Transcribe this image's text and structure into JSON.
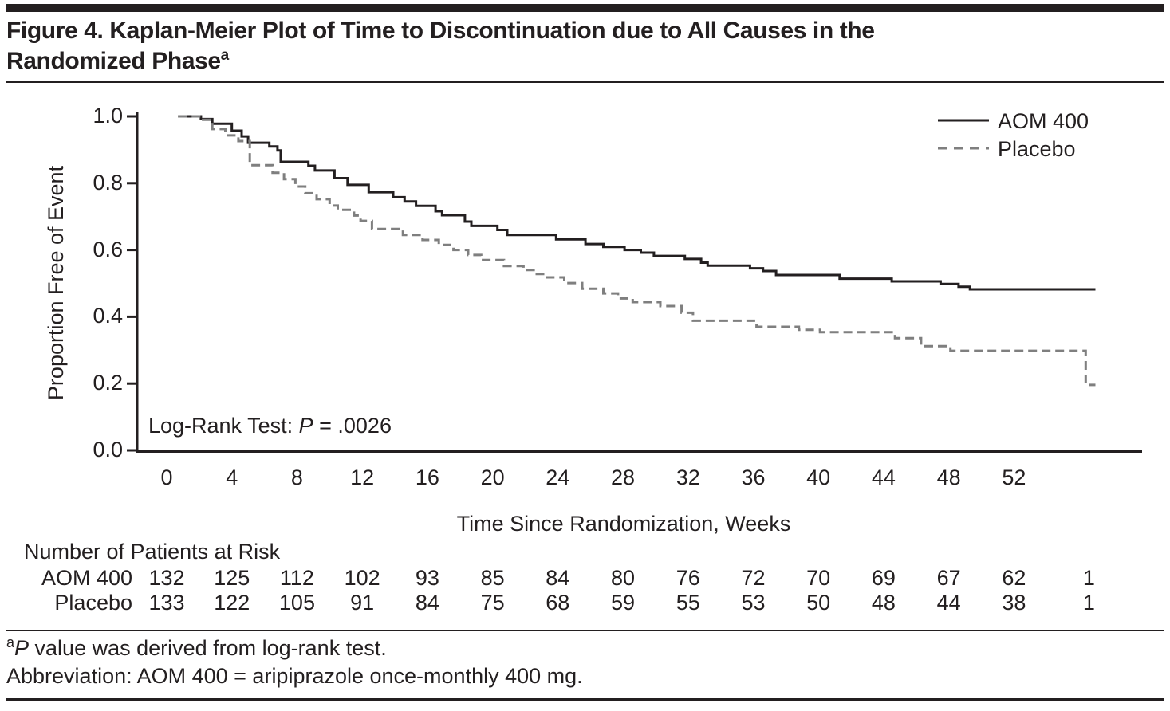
{
  "figure": {
    "title_line1": "Figure 4. Kaplan-Meier Plot of Time to Discontinuation due to All Causes in the",
    "title_line2": "Randomized Phase",
    "title_superscript": "a",
    "footnote1_sup": "a",
    "footnote1_italic": "P",
    "footnote1_rest": " value was derived from log-rank test.",
    "footnote2": "Abbreviation: AOM 400 = aripiprazole once-monthly 400 mg."
  },
  "colors": {
    "ink": "#231f20",
    "aom400_line": "#231f20",
    "placebo_line": "#7f7f7f"
  },
  "chart_data": {
    "type": "line",
    "subtype": "kaplan-meier-step",
    "title": "",
    "xlabel": "Time Since Randomization, Weeks",
    "ylabel": "Proportion Free of Event",
    "xlim": [
      0,
      58.5
    ],
    "ylim": [
      0.0,
      1.0
    ],
    "x_ticks": [
      0,
      4,
      8,
      12,
      16,
      20,
      24,
      28,
      32,
      36,
      40,
      44,
      48,
      52
    ],
    "y_ticks": [
      0.0,
      0.2,
      0.4,
      0.6,
      0.8,
      1.0
    ],
    "grid": false,
    "legend_position": "top-right",
    "annotation": {
      "prefix": "Log-Rank Test: ",
      "italic": "P",
      "suffix": " = .0026"
    },
    "series": [
      {
        "name": "AOM 400",
        "style": "solid",
        "color": "#231f20",
        "end_week": 57.0,
        "steps": [
          [
            0.7,
            1.0
          ],
          [
            2.1,
            0.992
          ],
          [
            2.8,
            0.978
          ],
          [
            4.0,
            0.957
          ],
          [
            4.6,
            0.94
          ],
          [
            5.0,
            0.921
          ],
          [
            6.3,
            0.91
          ],
          [
            6.8,
            0.898
          ],
          [
            7.0,
            0.864
          ],
          [
            8.7,
            0.852
          ],
          [
            9.1,
            0.838
          ],
          [
            10.3,
            0.815
          ],
          [
            11.1,
            0.795
          ],
          [
            12.4,
            0.773
          ],
          [
            13.9,
            0.758
          ],
          [
            14.6,
            0.745
          ],
          [
            15.3,
            0.732
          ],
          [
            16.5,
            0.716
          ],
          [
            16.9,
            0.704
          ],
          [
            18.3,
            0.685
          ],
          [
            18.7,
            0.672
          ],
          [
            20.3,
            0.66
          ],
          [
            20.9,
            0.645
          ],
          [
            23.9,
            0.632
          ],
          [
            25.7,
            0.618
          ],
          [
            26.8,
            0.609
          ],
          [
            28.1,
            0.6
          ],
          [
            29.1,
            0.592
          ],
          [
            29.9,
            0.582
          ],
          [
            31.8,
            0.573
          ],
          [
            32.8,
            0.562
          ],
          [
            33.2,
            0.553
          ],
          [
            35.8,
            0.545
          ],
          [
            36.6,
            0.537
          ],
          [
            37.4,
            0.525
          ],
          [
            41.3,
            0.514
          ],
          [
            44.5,
            0.506
          ],
          [
            47.5,
            0.498
          ],
          [
            48.6,
            0.49
          ],
          [
            49.3,
            0.482
          ]
        ]
      },
      {
        "name": "Placebo",
        "style": "dashed",
        "color": "#7f7f7f",
        "end_week": 57.0,
        "steps": [
          [
            0.7,
            1.0
          ],
          [
            2.1,
            0.99
          ],
          [
            2.8,
            0.962
          ],
          [
            3.6,
            0.943
          ],
          [
            4.4,
            0.926
          ],
          [
            5.1,
            0.854
          ],
          [
            6.5,
            0.831
          ],
          [
            7.2,
            0.812
          ],
          [
            7.9,
            0.79
          ],
          [
            8.5,
            0.77
          ],
          [
            9.2,
            0.752
          ],
          [
            10.0,
            0.733
          ],
          [
            10.5,
            0.72
          ],
          [
            11.5,
            0.703
          ],
          [
            11.9,
            0.687
          ],
          [
            12.6,
            0.663
          ],
          [
            14.5,
            0.645
          ],
          [
            15.7,
            0.63
          ],
          [
            16.7,
            0.615
          ],
          [
            17.6,
            0.6
          ],
          [
            18.5,
            0.585
          ],
          [
            19.3,
            0.57
          ],
          [
            20.7,
            0.552
          ],
          [
            21.9,
            0.54
          ],
          [
            22.6,
            0.528
          ],
          [
            23.2,
            0.518
          ],
          [
            24.4,
            0.501
          ],
          [
            25.5,
            0.484
          ],
          [
            26.8,
            0.47
          ],
          [
            27.7,
            0.455
          ],
          [
            28.6,
            0.444
          ],
          [
            30.3,
            0.432
          ],
          [
            31.6,
            0.412
          ],
          [
            32.3,
            0.388
          ],
          [
            36.2,
            0.37
          ],
          [
            38.8,
            0.361
          ],
          [
            40.1,
            0.354
          ],
          [
            44.7,
            0.336
          ],
          [
            46.3,
            0.312
          ],
          [
            48.1,
            0.298
          ],
          [
            56.4,
            0.196
          ]
        ]
      }
    ],
    "at_risk": {
      "header": "Number of Patients at Risk",
      "week_positions": [
        0,
        4,
        8,
        12,
        16,
        20,
        24,
        28,
        32,
        36,
        40,
        44,
        48,
        52,
        56.6
      ],
      "rows": [
        {
          "label": "AOM 400",
          "counts": [
            132,
            125,
            112,
            102,
            93,
            85,
            84,
            80,
            76,
            72,
            70,
            69,
            67,
            62,
            1
          ]
        },
        {
          "label": "Placebo",
          "counts": [
            133,
            122,
            105,
            91,
            84,
            75,
            68,
            59,
            55,
            53,
            50,
            48,
            44,
            38,
            1
          ]
        }
      ]
    }
  }
}
